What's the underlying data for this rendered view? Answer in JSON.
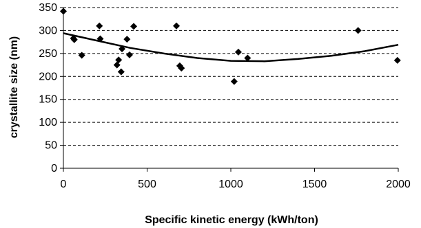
{
  "chart_data": {
    "type": "scatter",
    "title": "",
    "xlabel": "Specific kinetic energy (kWh/ton)",
    "ylabel": "crystallite size (nm)",
    "xlim": [
      0,
      2000
    ],
    "ylim": [
      0,
      350
    ],
    "x_ticks": [
      0,
      500,
      1000,
      1500,
      2000
    ],
    "y_ticks": [
      0,
      50,
      100,
      150,
      200,
      250,
      300,
      350
    ],
    "grid": "horizontal-dashed",
    "legend": "none",
    "marker_color": "#000000",
    "series": [
      {
        "marker": "diamond",
        "points": [
          {
            "x": 0,
            "y": 342
          },
          {
            "x": 60,
            "y": 283
          },
          {
            "x": 65,
            "y": 280
          },
          {
            "x": 110,
            "y": 246
          },
          {
            "x": 215,
            "y": 310
          },
          {
            "x": 220,
            "y": 282
          },
          {
            "x": 320,
            "y": 225
          },
          {
            "x": 330,
            "y": 236
          },
          {
            "x": 345,
            "y": 210
          },
          {
            "x": 350,
            "y": 260
          },
          {
            "x": 380,
            "y": 281
          },
          {
            "x": 395,
            "y": 247
          },
          {
            "x": 420,
            "y": 309
          },
          {
            "x": 675,
            "y": 310
          },
          {
            "x": 695,
            "y": 223
          },
          {
            "x": 705,
            "y": 218
          },
          {
            "x": 1020,
            "y": 189
          },
          {
            "x": 1045,
            "y": 253
          },
          {
            "x": 1100,
            "y": 240
          },
          {
            "x": 1760,
            "y": 300
          },
          {
            "x": 1995,
            "y": 235
          }
        ]
      },
      {
        "style": "trendline",
        "points": [
          {
            "x": 0,
            "y": 294
          },
          {
            "x": 200,
            "y": 278
          },
          {
            "x": 400,
            "y": 262
          },
          {
            "x": 600,
            "y": 250
          },
          {
            "x": 800,
            "y": 240
          },
          {
            "x": 1000,
            "y": 234
          },
          {
            "x": 1200,
            "y": 233
          },
          {
            "x": 1400,
            "y": 238
          },
          {
            "x": 1600,
            "y": 245
          },
          {
            "x": 1800,
            "y": 255
          },
          {
            "x": 2000,
            "y": 269
          }
        ]
      }
    ]
  }
}
